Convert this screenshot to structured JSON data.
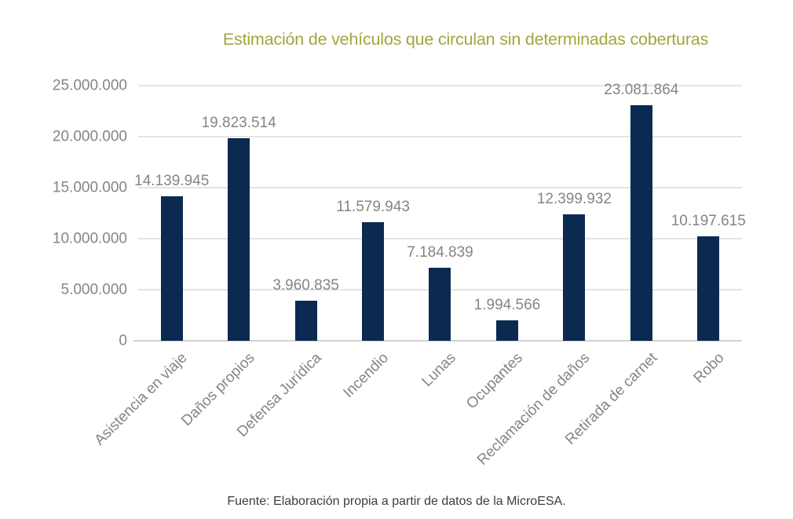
{
  "chart_data": {
    "type": "bar",
    "title": "Estimación de vehículos que circulan sin determinadas coberturas",
    "categories": [
      "Asistencia en viaje",
      "Daños propios",
      "Defensa Jurídica",
      "Incendio",
      "Lunas",
      "Ocupantes",
      "Reclamación de daños",
      "Retirada de carnet",
      "Robo"
    ],
    "values": [
      14139945,
      19823514,
      3960835,
      11579943,
      7184839,
      1994566,
      12399932,
      23081864,
      10197615
    ],
    "value_labels": [
      "14.139.945",
      "19.823.514",
      "3.960.835",
      "11.579.943",
      "7.184.839",
      "1.994.566",
      "12.399.932",
      "23.081.864",
      "10.197.615"
    ],
    "xlabel": "",
    "ylabel": "",
    "ylim": [
      0,
      25000000
    ],
    "ytick_values": [
      0,
      5000000,
      10000000,
      15000000,
      20000000,
      25000000
    ],
    "ytick_labels": [
      "0",
      "5.000.000",
      "10.000.000",
      "15.000.000",
      "20.000.000",
      "25.000.000"
    ],
    "grid": true,
    "legend": false,
    "bar_color": "#0b2a52",
    "title_color": "#a4a53e",
    "axis_label_color": "#858585",
    "gridline_color": "#e3e3e3",
    "baseline_color": "#d2d2d2"
  },
  "footer": {
    "source": "Fuente: Elaboración propia a partir de datos de la MicroESA."
  }
}
